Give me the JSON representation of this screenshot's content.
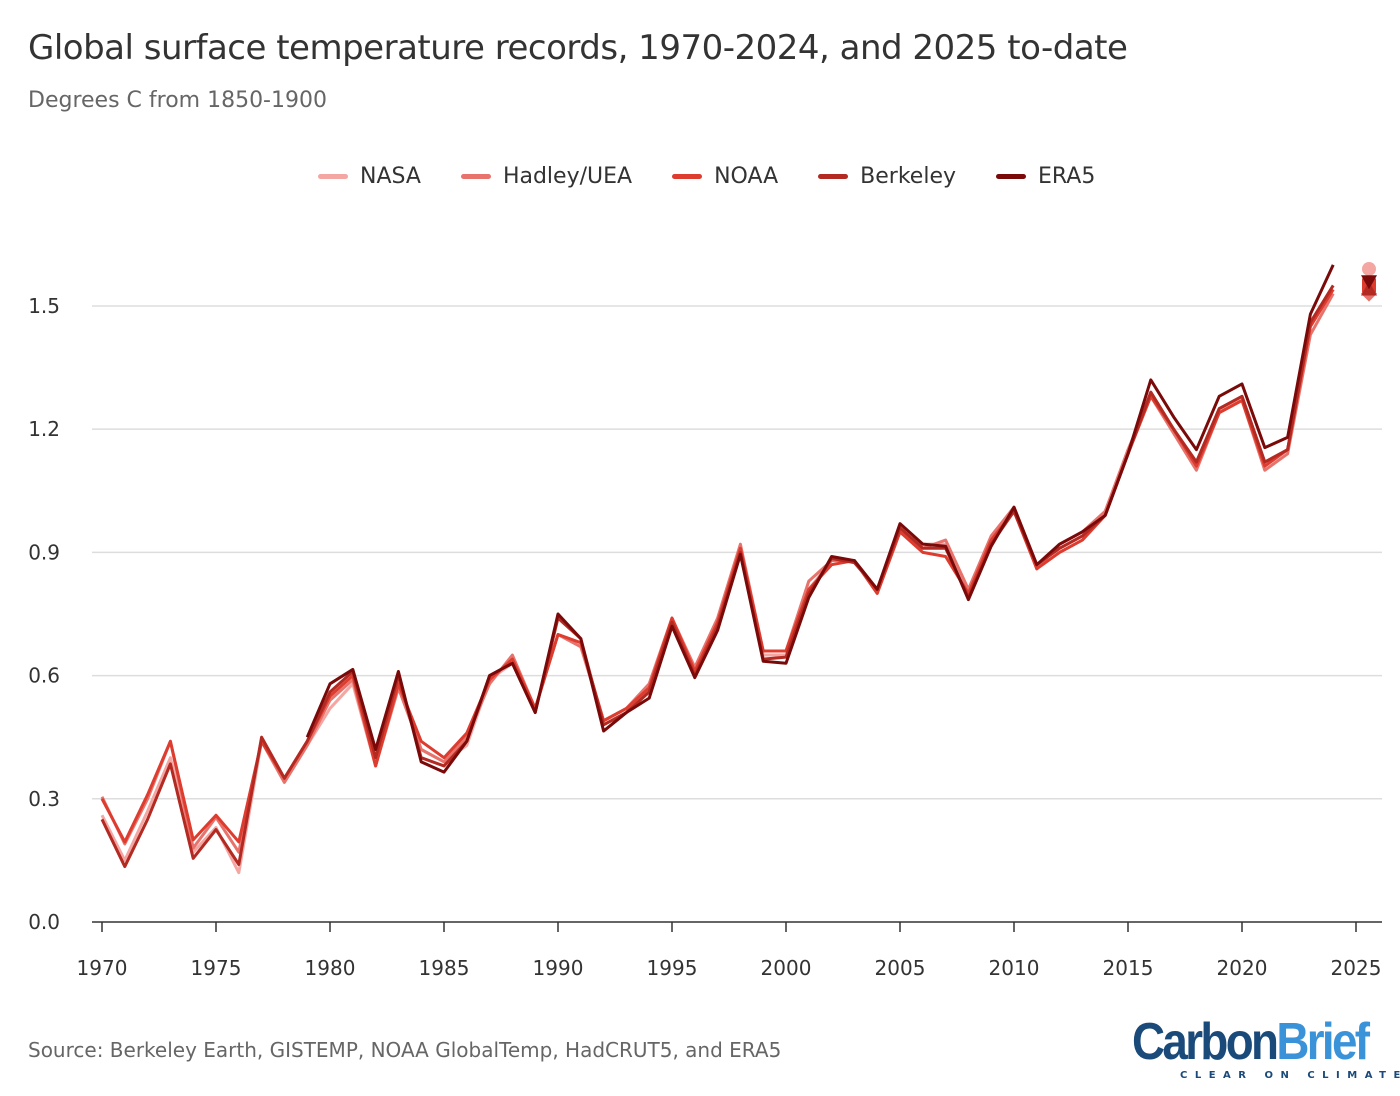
{
  "chart_data": {
    "type": "line",
    "title": "Global surface temperature records, 1970-2024, and 2025 to-date",
    "subtitle": "Degrees C from 1850-1900",
    "source": "Source: Berkeley Earth, GISTEMP, NOAA GlobalTemp, HadCRUT5, and ERA5",
    "xlabel": "",
    "ylabel": "",
    "xlim": [
      1969.5,
      2026
    ],
    "ylim": [
      0,
      1.65
    ],
    "xticks": [
      1970,
      1975,
      1980,
      1985,
      1990,
      1995,
      2000,
      2005,
      2010,
      2015,
      2020,
      2025
    ],
    "yticks": [
      0.0,
      0.3,
      0.6,
      0.9,
      1.2,
      1.5
    ],
    "ytick_labels": [
      "0.0",
      "0.3",
      "0.6",
      "0.9",
      "1.2",
      "1.5"
    ],
    "grid": "horizontal",
    "legend_position": "top-center",
    "series": [
      {
        "name": "NASA",
        "color": "#f4a6a3",
        "marker_2025": "circle",
        "start": 1970,
        "values": [
          0.26,
          0.15,
          0.27,
          0.4,
          0.17,
          0.23,
          0.12,
          0.44,
          0.34,
          0.43,
          0.52,
          0.58,
          0.38,
          0.59,
          0.42,
          0.39,
          0.43,
          0.59,
          0.63,
          0.52,
          0.7,
          0.68,
          0.48,
          0.51,
          0.57,
          0.72,
          0.61,
          0.72,
          0.9,
          0.65,
          0.65,
          0.81,
          0.88,
          0.88,
          0.8,
          0.95,
          0.92,
          0.92,
          0.8,
          0.93,
          1.01,
          0.87,
          0.91,
          0.94,
          1.0,
          1.14,
          1.29,
          1.2,
          1.12,
          1.24,
          1.28,
          1.12,
          1.15,
          1.45,
          1.54
        ],
        "value_2025": 1.59
      },
      {
        "name": "Hadley/UEA",
        "color": "#e8736c",
        "marker_2025": "diamond",
        "start": 1970,
        "values": [
          0.305,
          0.19,
          0.3,
          0.44,
          0.18,
          0.255,
          0.17,
          0.44,
          0.34,
          0.43,
          0.54,
          0.59,
          0.38,
          0.57,
          0.42,
          0.39,
          0.45,
          0.58,
          0.65,
          0.52,
          0.7,
          0.67,
          0.49,
          0.52,
          0.58,
          0.74,
          0.62,
          0.74,
          0.92,
          0.66,
          0.66,
          0.83,
          0.88,
          0.88,
          0.81,
          0.95,
          0.91,
          0.93,
          0.81,
          0.94,
          1.01,
          0.86,
          0.92,
          0.95,
          1.0,
          1.15,
          1.28,
          1.19,
          1.1,
          1.24,
          1.27,
          1.1,
          1.14,
          1.43,
          1.53
        ],
        "value_2025": 1.53
      },
      {
        "name": "NOAA",
        "color": "#dd3c2f",
        "marker_2025": "square",
        "start": 1970,
        "values": [
          0.3,
          0.195,
          0.31,
          0.44,
          0.2,
          0.26,
          0.195,
          0.44,
          0.35,
          0.44,
          0.55,
          0.6,
          0.38,
          0.58,
          0.44,
          0.4,
          0.46,
          0.59,
          0.64,
          0.52,
          0.7,
          0.68,
          0.49,
          0.52,
          0.57,
          0.74,
          0.61,
          0.73,
          0.91,
          0.66,
          0.66,
          0.81,
          0.87,
          0.88,
          0.8,
          0.95,
          0.9,
          0.89,
          0.8,
          0.93,
          1.0,
          0.86,
          0.9,
          0.93,
          0.99,
          1.14,
          1.28,
          1.2,
          1.11,
          1.24,
          1.27,
          1.11,
          1.15,
          1.45,
          1.54
        ],
        "value_2025": 1.55
      },
      {
        "name": "Berkeley",
        "color": "#b32a22",
        "marker_2025": "triangle-up",
        "start": 1970,
        "values": [
          0.25,
          0.135,
          0.25,
          0.385,
          0.155,
          0.225,
          0.14,
          0.45,
          0.35,
          0.44,
          0.56,
          0.61,
          0.4,
          0.6,
          0.4,
          0.38,
          0.44,
          0.6,
          0.63,
          0.51,
          0.74,
          0.69,
          0.48,
          0.51,
          0.56,
          0.73,
          0.6,
          0.72,
          0.9,
          0.64,
          0.645,
          0.8,
          0.885,
          0.875,
          0.81,
          0.96,
          0.91,
          0.91,
          0.79,
          0.92,
          1.0,
          0.87,
          0.91,
          0.94,
          0.99,
          1.14,
          1.29,
          1.2,
          1.12,
          1.25,
          1.28,
          1.12,
          1.15,
          1.46,
          1.55
        ],
        "value_2025": 1.54
      },
      {
        "name": "ERA5",
        "color": "#7a0a0a",
        "marker_2025": "triangle-down",
        "start": 1979,
        "values": [
          0.45,
          0.58,
          0.615,
          0.42,
          0.61,
          0.39,
          0.365,
          0.44,
          0.6,
          0.63,
          0.51,
          0.75,
          0.69,
          0.465,
          0.51,
          0.545,
          0.72,
          0.595,
          0.71,
          0.895,
          0.635,
          0.63,
          0.79,
          0.89,
          0.88,
          0.81,
          0.97,
          0.92,
          0.915,
          0.785,
          0.915,
          1.01,
          0.87,
          0.92,
          0.95,
          0.99,
          1.14,
          1.32,
          1.23,
          1.15,
          1.28,
          1.31,
          1.155,
          1.18,
          1.48,
          1.6
        ],
        "value_2025": 1.56
      }
    ]
  },
  "logo": {
    "name_dark": "Carbon",
    "name_light": "Brief",
    "tagline": "CLEAR ON CLIMATE"
  }
}
